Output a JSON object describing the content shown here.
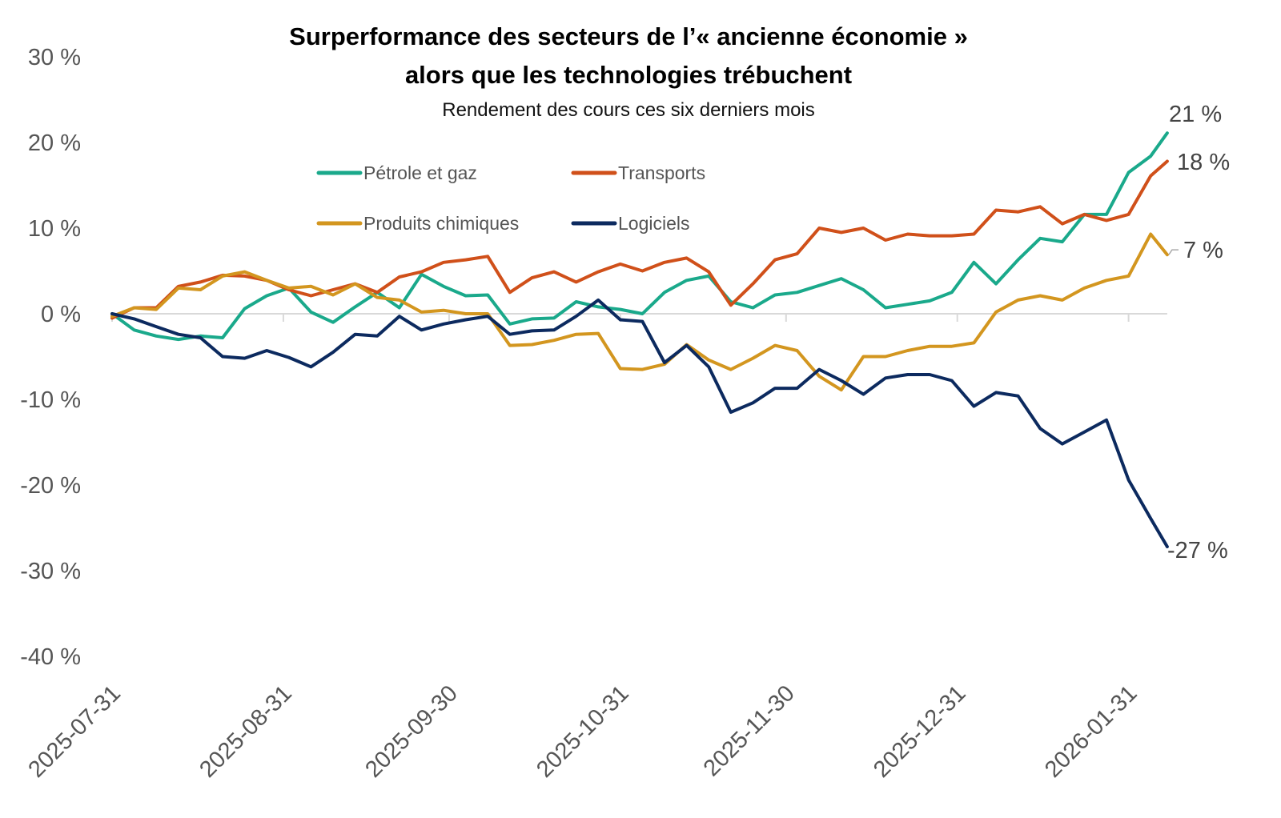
{
  "chart_data": {
    "type": "line",
    "title": "Surperformance des secteurs de l’« ancienne économie » alors que les technologies trébuchent",
    "title_lines": [
      "Surperformance des secteurs de l’« ancienne économie »",
      "alors que les technologies trébuchent"
    ],
    "subtitle": "Rendement des cours ces six derniers mois",
    "xlabel": "",
    "ylabel": "",
    "ylim": [
      -40,
      30
    ],
    "yticks": [
      30,
      20,
      10,
      0,
      -10,
      -20,
      -30,
      -40
    ],
    "ytick_labels": [
      "30 %",
      "20 %",
      "10 %",
      "0 %",
      "-10 %",
      "-20 %",
      "-30 %",
      "-40 %"
    ],
    "xticks": [
      "2025-07-31",
      "2025-08-31",
      "2025-09-30",
      "2025-10-31",
      "2025-11-30",
      "2025-12-31",
      "2026-01-31"
    ],
    "grid": false,
    "legend_placement": "top-left",
    "x": [
      "2025-07-31",
      "2025-08-04",
      "2025-08-08",
      "2025-08-12",
      "2025-08-16",
      "2025-08-20",
      "2025-08-24",
      "2025-08-28",
      "2025-09-01",
      "2025-09-05",
      "2025-09-09",
      "2025-09-13",
      "2025-09-17",
      "2025-09-21",
      "2025-09-25",
      "2025-09-29",
      "2025-10-03",
      "2025-10-07",
      "2025-10-11",
      "2025-10-15",
      "2025-10-19",
      "2025-10-23",
      "2025-10-27",
      "2025-10-31",
      "2025-11-04",
      "2025-11-08",
      "2025-11-12",
      "2025-11-16",
      "2025-11-20",
      "2025-11-24",
      "2025-11-28",
      "2025-12-02",
      "2025-12-06",
      "2025-12-10",
      "2025-12-14",
      "2025-12-18",
      "2025-12-22",
      "2025-12-26",
      "2025-12-30",
      "2026-01-03",
      "2026-01-07",
      "2026-01-11",
      "2026-01-15",
      "2026-01-19",
      "2026-01-23",
      "2026-01-27",
      "2026-01-31",
      "2026-02-04",
      "2026-02-07"
    ],
    "series": [
      {
        "name": "Pétrole et gaz",
        "color": "#1aa98b",
        "end_label": "21 %",
        "values": [
          0,
          -1.9,
          -2.6,
          -3.0,
          -2.6,
          -2.8,
          0.6,
          2.1,
          3.0,
          0.2,
          -1.0,
          0.8,
          2.5,
          0.7,
          4.6,
          3.2,
          2.1,
          2.2,
          -1.2,
          -0.6,
          -0.5,
          1.4,
          0.8,
          0.5,
          0,
          2.5,
          3.9,
          4.4,
          1.4,
          0.7,
          2.2,
          2.5,
          3.3,
          4.1,
          2.8,
          0.7,
          1.1,
          1.5,
          2.5,
          6.0,
          3.5,
          6.3,
          8.8,
          8.4,
          11.6,
          11.6,
          16.5,
          18.4,
          21.1
        ]
      },
      {
        "name": "Transports",
        "color": "#d0501a",
        "end_label": "18 %",
        "values": [
          -0.5,
          0.7,
          0.7,
          3.2,
          3.7,
          4.5,
          4.4,
          3.9,
          2.8,
          2.1,
          2.8,
          3.5,
          2.5,
          4.3,
          4.9,
          6.0,
          6.3,
          6.7,
          2.5,
          4.2,
          4.9,
          3.7,
          4.9,
          5.8,
          5.0,
          6.0,
          6.5,
          4.9,
          1.0,
          3.5,
          6.3,
          7.0,
          10.0,
          9.5,
          10.0,
          8.6,
          9.3,
          9.1,
          9.1,
          9.3,
          12.1,
          11.9,
          12.5,
          10.5,
          11.6,
          10.9,
          11.6,
          16.1,
          17.8
        ]
      },
      {
        "name": "Produits chimiques",
        "color": "#d3961f",
        "end_label": "7 %",
        "values": [
          -0.3,
          0.7,
          0.5,
          3.0,
          2.8,
          4.4,
          4.9,
          3.9,
          3.0,
          3.2,
          2.2,
          3.5,
          1.9,
          1.6,
          0.2,
          0.4,
          0,
          0,
          -3.7,
          -3.6,
          -3.1,
          -2.4,
          -2.3,
          -6.4,
          -6.5,
          -5.9,
          -3.6,
          -5.4,
          -6.5,
          -5.2,
          -3.7,
          -4.3,
          -7.3,
          -8.9,
          -5.0,
          -5.0,
          -4.3,
          -3.8,
          -3.8,
          -3.4,
          0.2,
          1.6,
          2.1,
          1.6,
          3.0,
          3.9,
          4.4,
          9.3,
          6.9
        ]
      },
      {
        "name": "Logiciels",
        "color": "#0c2a5f",
        "end_label": "-27 %",
        "values": [
          0,
          -0.6,
          -1.5,
          -2.4,
          -2.8,
          -5.0,
          -5.2,
          -4.3,
          -5.1,
          -6.2,
          -4.5,
          -2.4,
          -2.6,
          -0.3,
          -1.9,
          -1.2,
          -0.7,
          -0.3,
          -2.4,
          -2.0,
          -1.9,
          -0.3,
          1.6,
          -0.7,
          -0.9,
          -5.7,
          -3.7,
          -6.2,
          -11.5,
          -10.4,
          -8.7,
          -8.7,
          -6.5,
          -7.8,
          -9.4,
          -7.5,
          -7.1,
          -7.1,
          -7.8,
          -10.8,
          -9.2,
          -9.6,
          -13.4,
          -15.2,
          -13.8,
          -12.4,
          -19.4,
          -23.9,
          -27.2
        ]
      }
    ]
  }
}
